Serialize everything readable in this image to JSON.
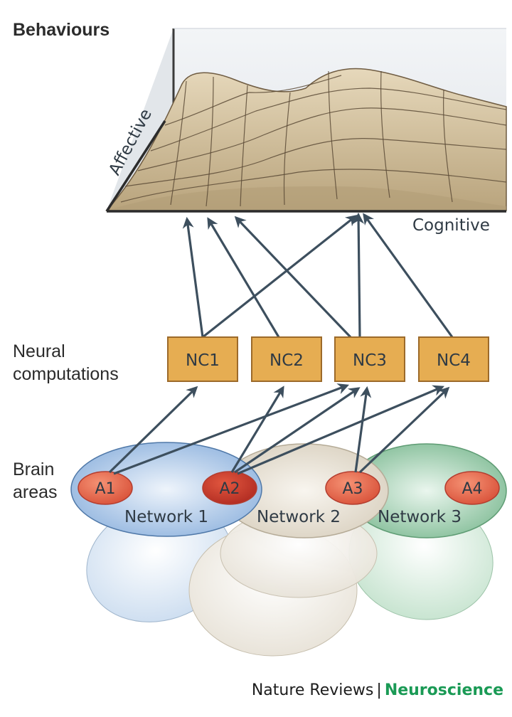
{
  "landscape": {
    "title": "Behaviours",
    "axis_affective": "Affective",
    "axis_cognitive": "Cognitive"
  },
  "computations": {
    "label_line1": "Neural",
    "label_line2": "computations",
    "boxes": [
      "NC1",
      "NC2",
      "NC3",
      "NC4"
    ]
  },
  "brain": {
    "label_line1": "Brain",
    "label_line2": "areas",
    "areas": [
      "A1",
      "A2",
      "A3",
      "A4"
    ],
    "networks": [
      "Network 1",
      "Network 2",
      "Network 3"
    ]
  },
  "footer": {
    "journal": "Nature Reviews",
    "separator": "|",
    "section": "Neuroscience"
  },
  "colors": {
    "surface": "#d2c19f",
    "box_fill": "#e6ad52",
    "area_dark": "#c83a2c",
    "area_light": "#e0664c",
    "network1": "#a9c5e6",
    "network2": "#e4ddcf",
    "network3": "#99c9a8",
    "arrow": "#3d4f5e",
    "brand_green": "#1a9a55"
  }
}
